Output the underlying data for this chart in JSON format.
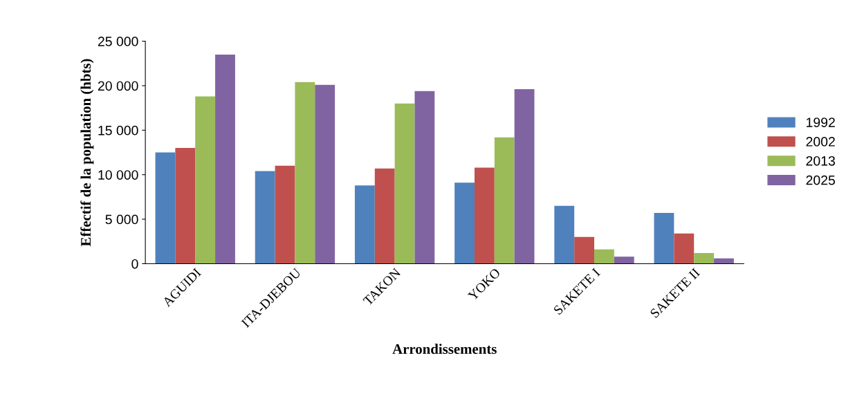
{
  "chart_data": {
    "type": "bar",
    "xlabel": "Arrondissements",
    "ylabel": "Effectif de la population (hbts)",
    "categories": [
      "AGUIDI",
      "ITA-DJEBOU",
      "TAKON",
      "YOKO",
      "SAKETE I",
      "SAKETE II"
    ],
    "series": [
      {
        "name": "1992",
        "color": "#4f81bd",
        "values": [
          12500,
          10400,
          8800,
          9100,
          6500,
          5700
        ]
      },
      {
        "name": "2002",
        "color": "#c0504d",
        "values": [
          13000,
          11000,
          10700,
          10800,
          3000,
          3400
        ]
      },
      {
        "name": "2013",
        "color": "#9bbb59",
        "values": [
          18800,
          20400,
          18000,
          14200,
          1600,
          1200
        ]
      },
      {
        "name": "2025",
        "color": "#8064a2",
        "values": [
          23500,
          20100,
          19400,
          19600,
          800,
          600
        ]
      }
    ],
    "ylim": [
      0,
      25000
    ],
    "yticks": [
      {
        "value": 0,
        "label": "0"
      },
      {
        "value": 5000,
        "label": "5 000"
      },
      {
        "value": 10000,
        "label": "10 000"
      },
      {
        "value": 15000,
        "label": "15 000"
      },
      {
        "value": 20000,
        "label": "20 000"
      },
      {
        "value": 25000,
        "label": "25 000"
      }
    ],
    "legend": "right"
  }
}
